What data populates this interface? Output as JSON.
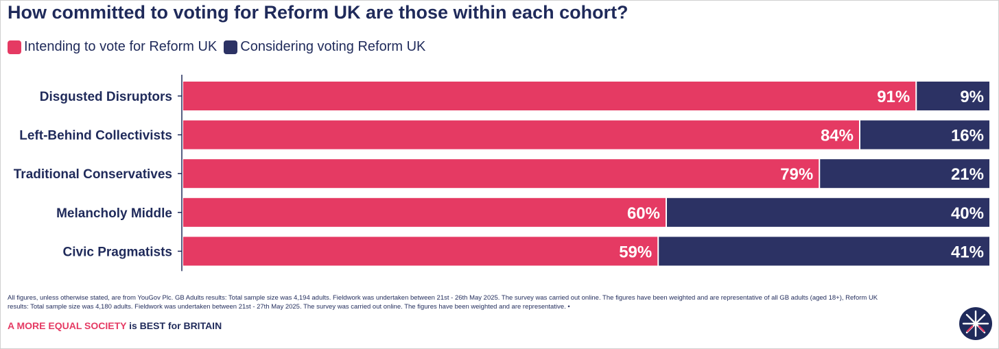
{
  "colors": {
    "intending": "#e53a63",
    "considering": "#2c3264",
    "text": "#1f2a5a"
  },
  "chart_data": {
    "type": "bar",
    "stacked": true,
    "orientation": "horizontal",
    "title": "How committed to voting for Reform UK are those within each cohort?",
    "categories": [
      "Disgusted Disruptors",
      "Left-Behind Collectivists",
      "Traditional Conservatives",
      "Melancholy Middle",
      "Civic Pragmatists"
    ],
    "series": [
      {
        "name": "Intending to vote for Reform UK",
        "values": [
          91,
          84,
          79,
          60,
          59
        ],
        "labels": [
          "91%",
          "84%",
          "79%",
          "60%",
          "59%"
        ]
      },
      {
        "name": "Considering voting Reform UK",
        "values": [
          9,
          16,
          21,
          40,
          41
        ],
        "labels": [
          "9%",
          "16%",
          "21%",
          "40%",
          "41%"
        ]
      }
    ],
    "xlim": [
      0,
      100
    ],
    "legend_position": "top-left"
  },
  "footnote": "All figures, unless otherwise stated, are from YouGov Plc. GB Adults results: Total sample size was 4,194 adults. Fieldwork was undertaken between 21st - 26th May 2025. The survey was carried out online. The figures have been weighted and are representative of all GB adults (aged 18+), Reform UK results: Total sample size was 4,180 adults. Fieldwork was undertaken between 21st - 27th May 2025. The survey was carried out online. The figures have been weighted and are representative. •",
  "tagline": {
    "highlight": "A MORE EQUAL SOCIETY",
    "rest": " is BEST for BRITAIN"
  }
}
